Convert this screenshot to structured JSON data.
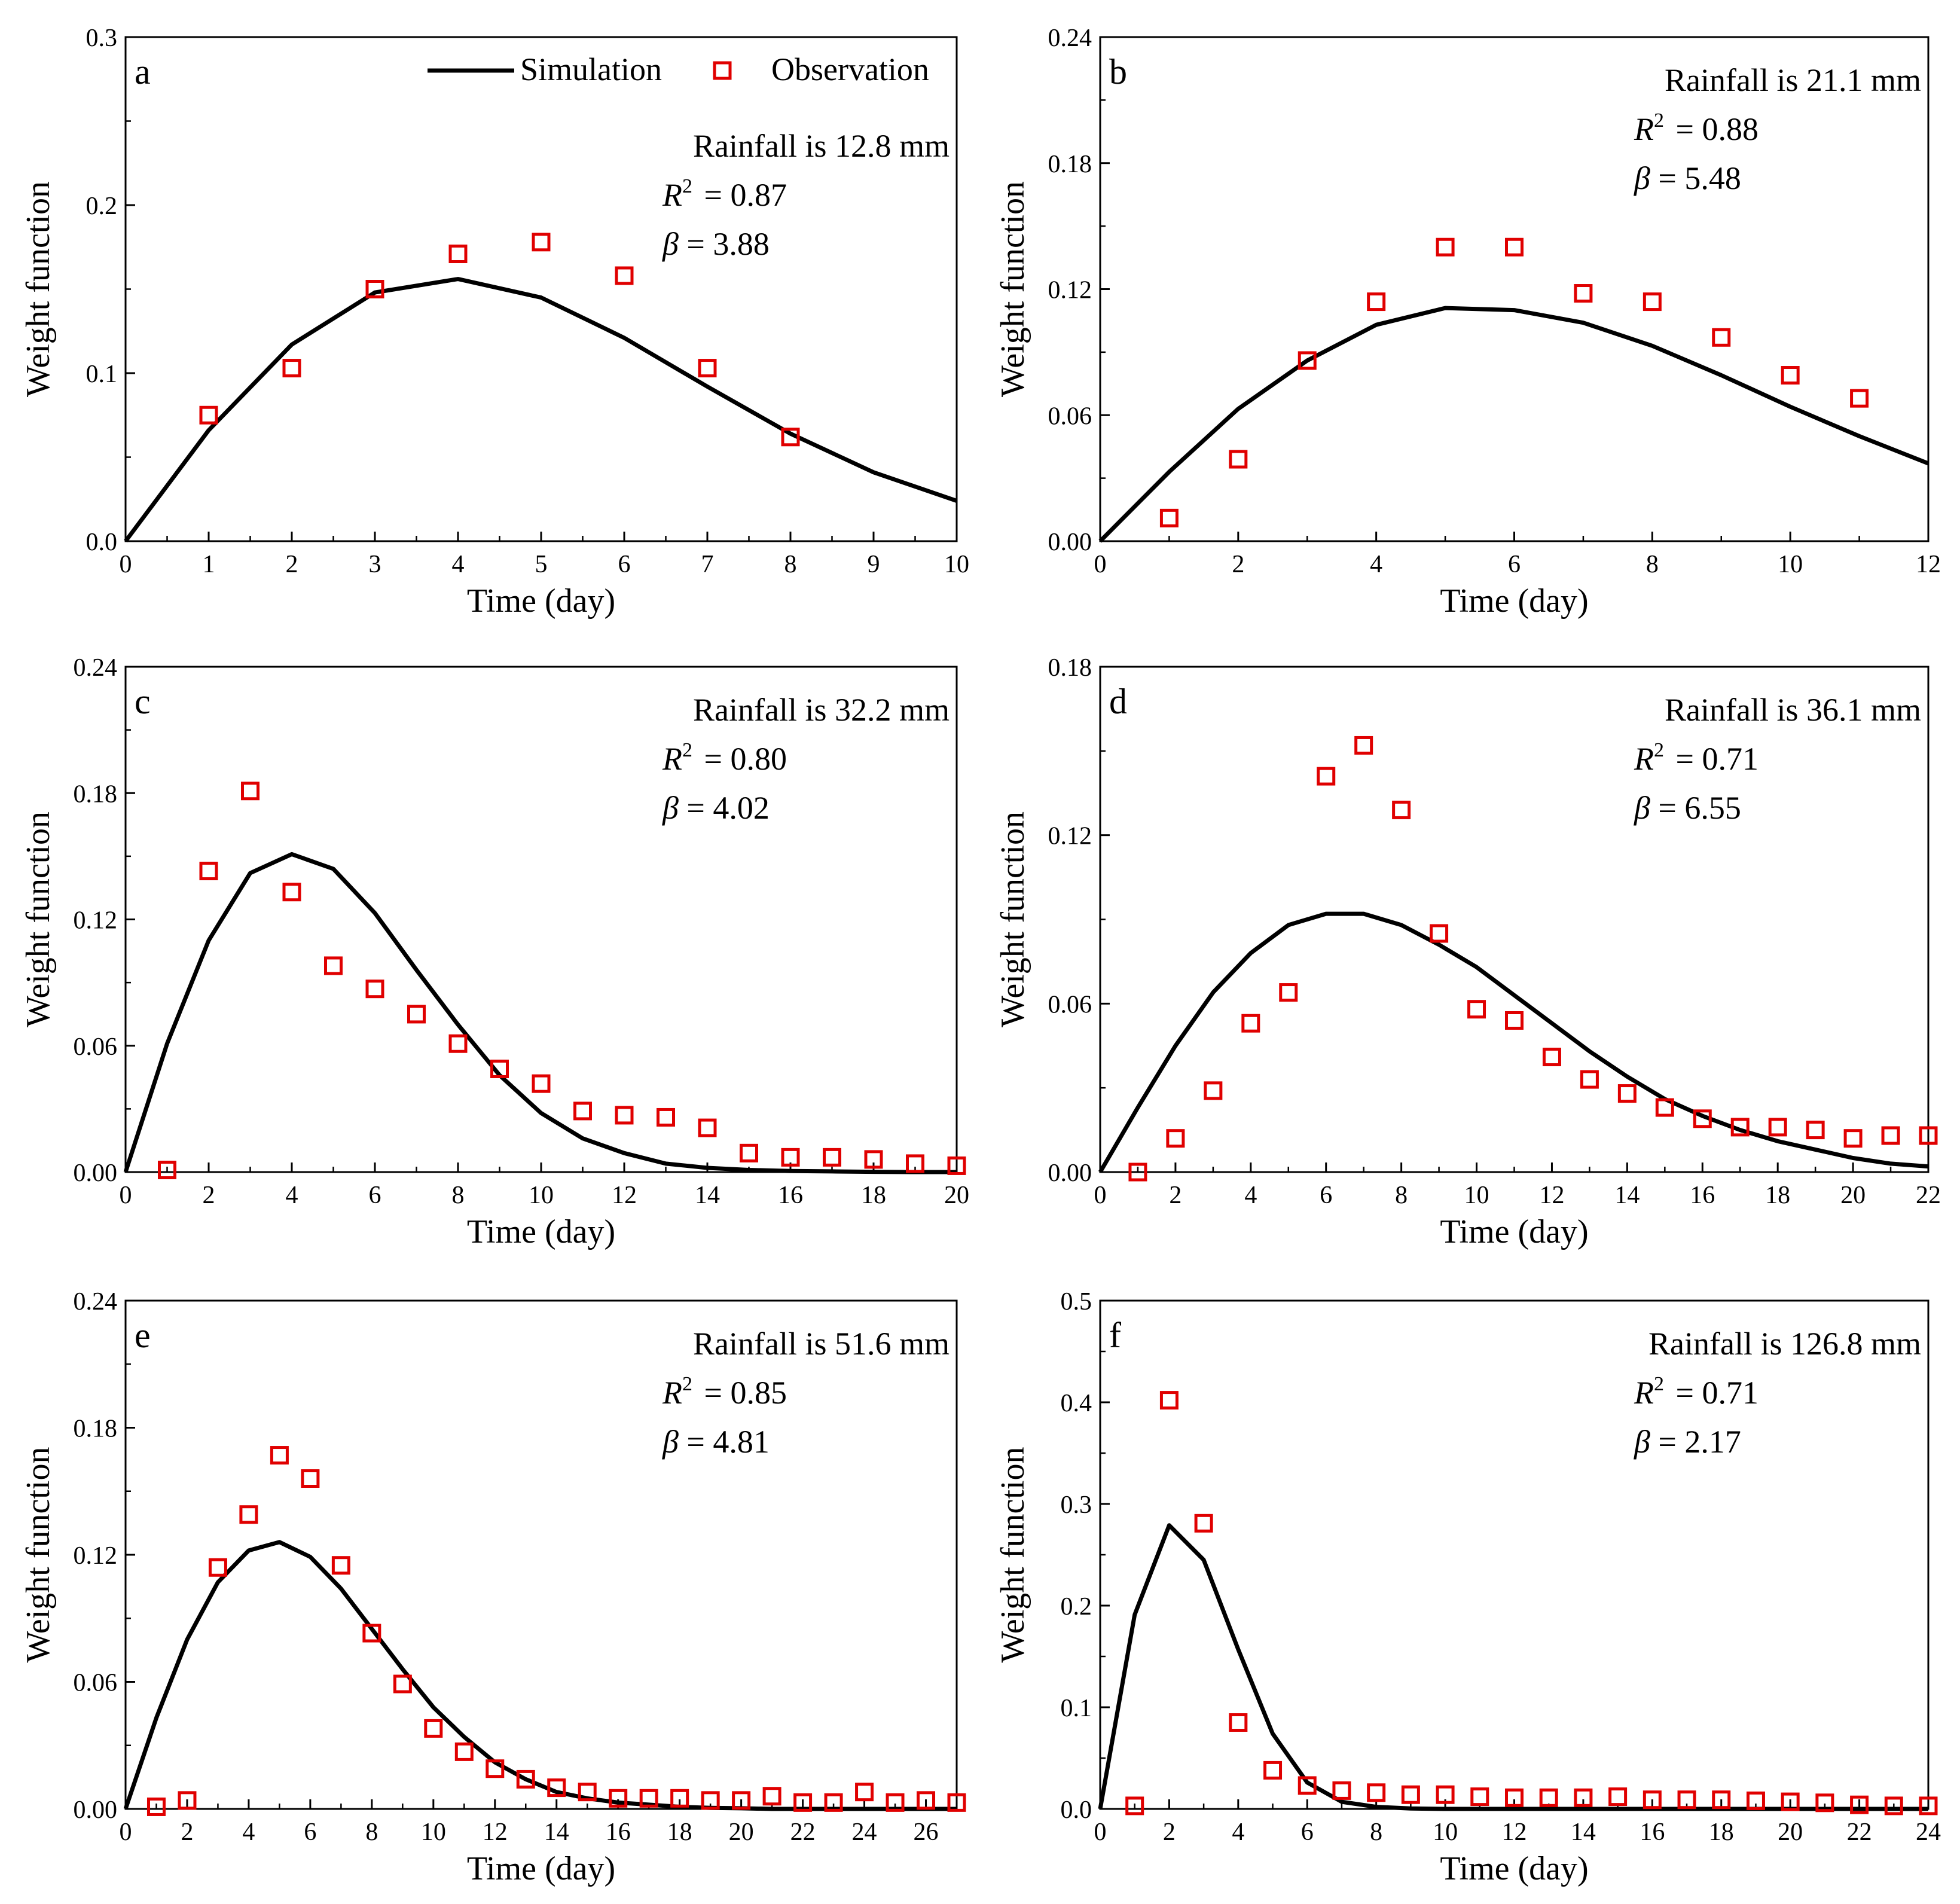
{
  "figure": {
    "legend": {
      "simulation_label": "Simulation",
      "observation_label": "Observation"
    },
    "colors": {
      "simulation": "#000000",
      "observation": "#e00000"
    }
  },
  "chart_data": [
    {
      "type": "line",
      "panel": "a",
      "xlabel": "Time (day)",
      "ylabel": "Weight function",
      "xlim": [
        0,
        10
      ],
      "ylim": [
        0,
        0.3
      ],
      "xticks": [
        "0",
        "1",
        "2",
        "3",
        "4",
        "5",
        "6",
        "7",
        "8",
        "9",
        "10"
      ],
      "yticks": [
        "0.0",
        "0.1",
        "0.2",
        "0.3"
      ],
      "rainfall_text": "Rainfall is 12.8 mm",
      "r2_value": "= 0.87",
      "beta_value": "= 3.88",
      "simulation": {
        "x": [
          0,
          1,
          2,
          3,
          4,
          5,
          6,
          7,
          8,
          9,
          10
        ],
        "y": [
          0,
          0.066,
          0.117,
          0.148,
          0.156,
          0.145,
          0.121,
          0.092,
          0.064,
          0.041,
          0.024
        ]
      },
      "observation": {
        "x": [
          1,
          2,
          3,
          4,
          5,
          6,
          7,
          8
        ],
        "y": [
          0.075,
          0.103,
          0.15,
          0.171,
          0.178,
          0.158,
          0.103,
          0.062
        ]
      }
    },
    {
      "type": "line",
      "panel": "b",
      "xlabel": "Time (day)",
      "ylabel": "Weight function",
      "xlim": [
        0,
        12
      ],
      "ylim": [
        0,
        0.24
      ],
      "xticks": [
        "0",
        "2",
        "4",
        "6",
        "8",
        "10",
        "12"
      ],
      "yticks": [
        "0.00",
        "0.06",
        "0.12",
        "0.18",
        "0.24"
      ],
      "rainfall_text": "Rainfall is 21.1 mm",
      "r2_value": "= 0.88",
      "beta_value": "= 5.48",
      "simulation": {
        "x": [
          0,
          1,
          2,
          3,
          4,
          5,
          6,
          7,
          8,
          9,
          10,
          11,
          12
        ],
        "y": [
          0,
          0.033,
          0.063,
          0.086,
          0.103,
          0.111,
          0.11,
          0.104,
          0.093,
          0.079,
          0.064,
          0.05,
          0.037
        ]
      },
      "observation": {
        "x": [
          1,
          2,
          3,
          4,
          5,
          6,
          7,
          8,
          9,
          10,
          11
        ],
        "y": [
          0.011,
          0.039,
          0.086,
          0.114,
          0.14,
          0.14,
          0.118,
          0.114,
          0.097,
          0.079,
          0.068
        ]
      }
    },
    {
      "type": "line",
      "panel": "c",
      "xlabel": "Time (day)",
      "ylabel": "Weight function",
      "xlim": [
        0,
        20
      ],
      "ylim": [
        0,
        0.24
      ],
      "xticks": [
        "0",
        "2",
        "4",
        "6",
        "8",
        "10",
        "12",
        "14",
        "16",
        "18",
        "20"
      ],
      "yticks": [
        "0.00",
        "0.06",
        "0.12",
        "0.18",
        "0.24"
      ],
      "rainfall_text": "Rainfall is 32.2 mm",
      "r2_value": "= 0.80",
      "beta_value": "= 4.02",
      "simulation": {
        "x": [
          0,
          1,
          2,
          3,
          4,
          5,
          6,
          7,
          8,
          9,
          10,
          11,
          12,
          13,
          14,
          15,
          16,
          17,
          18,
          19,
          20
        ],
        "y": [
          0,
          0.061,
          0.11,
          0.142,
          0.151,
          0.144,
          0.123,
          0.096,
          0.07,
          0.046,
          0.028,
          0.016,
          0.009,
          0.004,
          0.002,
          0.001,
          0.0005,
          0.0003,
          0.0001,
          0,
          0
        ]
      },
      "observation": {
        "x": [
          1,
          2,
          3,
          4,
          5,
          6,
          7,
          8,
          9,
          10,
          11,
          12,
          13,
          14,
          15,
          16,
          17,
          18,
          19,
          20
        ],
        "y": [
          0.001,
          0.143,
          0.181,
          0.133,
          0.098,
          0.087,
          0.075,
          0.061,
          0.049,
          0.042,
          0.029,
          0.027,
          0.026,
          0.021,
          0.009,
          0.007,
          0.007,
          0.006,
          0.004,
          0.003
        ]
      }
    },
    {
      "type": "line",
      "panel": "d",
      "xlabel": "Time (day)",
      "ylabel": "Weight function",
      "xlim": [
        0,
        22
      ],
      "ylim": [
        0,
        0.18
      ],
      "xticks": [
        "0",
        "2",
        "4",
        "6",
        "8",
        "10",
        "12",
        "14",
        "16",
        "18",
        "20",
        "22"
      ],
      "yticks": [
        "0.00",
        "0.06",
        "0.12",
        "0.18"
      ],
      "rainfall_text": "Rainfall is 36.1 mm",
      "r2_value": "= 0.71",
      "beta_value": "= 6.55",
      "simulation": {
        "x": [
          0,
          1,
          2,
          3,
          4,
          5,
          6,
          7,
          8,
          9,
          10,
          11,
          12,
          13,
          14,
          15,
          16,
          17,
          18,
          19,
          20,
          21,
          22
        ],
        "y": [
          0,
          0.023,
          0.045,
          0.064,
          0.078,
          0.088,
          0.092,
          0.092,
          0.088,
          0.081,
          0.073,
          0.063,
          0.053,
          0.043,
          0.034,
          0.026,
          0.02,
          0.015,
          0.011,
          0.008,
          0.005,
          0.003,
          0.002
        ]
      },
      "observation": {
        "x": [
          1,
          2,
          3,
          4,
          5,
          6,
          7,
          8,
          9,
          10,
          11,
          12,
          13,
          14,
          15,
          16,
          17,
          18,
          19,
          20,
          21,
          22
        ],
        "y": [
          0.0,
          0.012,
          0.029,
          0.053,
          0.064,
          0.141,
          0.152,
          0.129,
          0.085,
          0.058,
          0.054,
          0.041,
          0.033,
          0.028,
          0.023,
          0.019,
          0.016,
          0.016,
          0.015,
          0.012,
          0.013,
          0.013
        ]
      }
    },
    {
      "type": "line",
      "panel": "e",
      "xlabel": "Time (day)",
      "ylabel": "Weight function",
      "xlim": [
        0,
        27
      ],
      "ylim": [
        0,
        0.24
      ],
      "xticks": [
        "0",
        "2",
        "4",
        "6",
        "8",
        "10",
        "12",
        "14",
        "16",
        "18",
        "20",
        "22",
        "24",
        "26"
      ],
      "yticks": [
        "0.00",
        "0.06",
        "0.12",
        "0.18",
        "0.24"
      ],
      "rainfall_text": "Rainfall is 51.6 mm",
      "r2_value": "= 0.85",
      "beta_value": "= 4.81",
      "simulation": {
        "x": [
          0,
          1,
          2,
          3,
          4,
          5,
          6,
          7,
          8,
          9,
          10,
          11,
          12,
          13,
          14,
          15,
          16,
          17,
          18,
          19,
          20,
          21,
          22,
          23,
          24,
          25,
          26,
          27
        ],
        "y": [
          0,
          0.043,
          0.08,
          0.107,
          0.122,
          0.126,
          0.119,
          0.104,
          0.085,
          0.066,
          0.048,
          0.034,
          0.022,
          0.014,
          0.008,
          0.005,
          0.003,
          0.002,
          0.001,
          0.0005,
          0.0003,
          0,
          0,
          0,
          0,
          0,
          0,
          0
        ]
      },
      "observation": {
        "x": [
          1,
          2,
          3,
          4,
          5,
          6,
          7,
          8,
          9,
          10,
          11,
          12,
          13,
          14,
          15,
          16,
          17,
          18,
          19,
          20,
          21,
          22,
          23,
          24,
          25,
          26,
          27
        ],
        "y": [
          0.001,
          0.004,
          0.114,
          0.139,
          0.167,
          0.156,
          0.115,
          0.083,
          0.059,
          0.038,
          0.027,
          0.019,
          0.014,
          0.01,
          0.008,
          0.005,
          0.005,
          0.005,
          0.004,
          0.004,
          0.006,
          0.003,
          0.003,
          0.008,
          0.003,
          0.004,
          0.003
        ]
      }
    },
    {
      "type": "line",
      "panel": "f",
      "xlabel": "Time (day)",
      "ylabel": "Weight function",
      "xlim": [
        0,
        24
      ],
      "ylim": [
        0,
        0.5
      ],
      "xticks": [
        "0",
        "2",
        "4",
        "6",
        "8",
        "10",
        "12",
        "14",
        "16",
        "18",
        "20",
        "22",
        "24"
      ],
      "yticks": [
        "0.0",
        "0.1",
        "0.2",
        "0.3",
        "0.4",
        "0.5"
      ],
      "rainfall_text": "Rainfall is 126.8 mm",
      "r2_value": "= 0.71",
      "beta_value": "= 2.17",
      "simulation": {
        "x": [
          0,
          1,
          2,
          3,
          4,
          5,
          6,
          7,
          8,
          9,
          10,
          11,
          12,
          13,
          14,
          15,
          16,
          17,
          18,
          19,
          20,
          21,
          22,
          23,
          24
        ],
        "y": [
          0,
          0.191,
          0.279,
          0.245,
          0.157,
          0.074,
          0.026,
          0.007,
          0.002,
          0.0005,
          0,
          0,
          0,
          0,
          0,
          0,
          0,
          0,
          0,
          0,
          0,
          0,
          0,
          0,
          0
        ]
      },
      "observation": {
        "x": [
          1,
          2,
          3,
          4,
          5,
          6,
          7,
          8,
          9,
          10,
          11,
          12,
          13,
          14,
          15,
          16,
          17,
          18,
          19,
          20,
          21,
          22,
          23,
          24
        ],
        "y": [
          0.003,
          0.402,
          0.281,
          0.085,
          0.038,
          0.023,
          0.018,
          0.016,
          0.014,
          0.014,
          0.012,
          0.011,
          0.011,
          0.011,
          0.012,
          0.009,
          0.009,
          0.009,
          0.008,
          0.007,
          0.006,
          0.004,
          0.003,
          0.003
        ]
      }
    }
  ]
}
